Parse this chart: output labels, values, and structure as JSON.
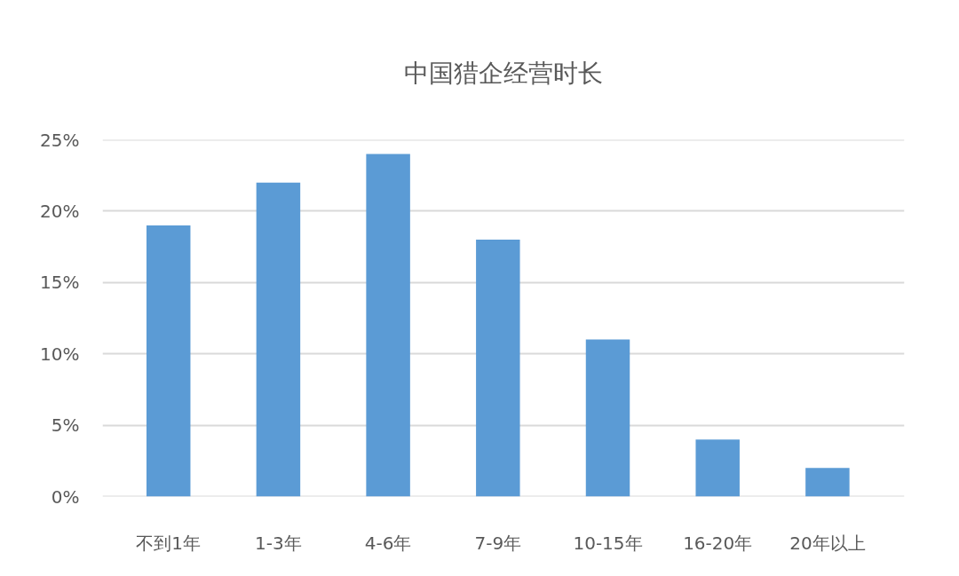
{
  "chart_data": {
    "type": "bar",
    "title": "中国猎企经营时长",
    "categories": [
      "不到1年",
      "1-3年",
      "4-6年",
      "7-9年",
      "10-15年",
      "16-20年",
      "20年以上"
    ],
    "values": [
      19,
      22,
      24,
      18,
      11,
      4,
      2
    ],
    "color": "#5b9bd5",
    "ylim": [
      0,
      25
    ],
    "yticks": [
      {
        "value": 0,
        "label": "0%"
      },
      {
        "value": 5,
        "label": "5%"
      },
      {
        "value": 10,
        "label": "10%"
      },
      {
        "value": 15,
        "label": "15%"
      },
      {
        "value": 20,
        "label": "20%"
      },
      {
        "value": 25,
        "label": "25%"
      }
    ],
    "grid": "y"
  }
}
